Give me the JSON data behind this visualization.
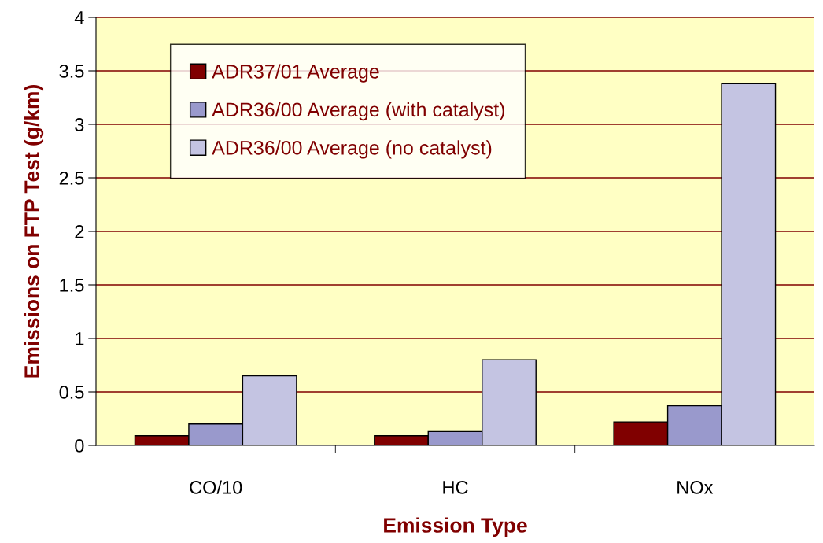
{
  "chart_data": {
    "type": "bar",
    "xlabel": "Emission Type",
    "ylabel": "Emissions on FTP Test (g/km)",
    "categories": [
      "CO/10",
      "HC",
      "NOx"
    ],
    "series": [
      {
        "name": "ADR37/01 Average",
        "color": "#800000",
        "values": [
          0.09,
          0.09,
          0.22
        ]
      },
      {
        "name": "ADR36/00 Average (with catalyst)",
        "color": "#9999cc",
        "values": [
          0.2,
          0.13,
          0.37
        ]
      },
      {
        "name": "ADR36/00 Average (no catalyst)",
        "color": "#c4c4e2",
        "values": [
          0.65,
          0.8,
          3.38
        ]
      }
    ],
    "ylim": [
      0,
      4
    ],
    "yticks": [
      0,
      0.5,
      1,
      1.5,
      2,
      2.5,
      3,
      3.5,
      4
    ],
    "grid": "y",
    "legend": "top left"
  }
}
